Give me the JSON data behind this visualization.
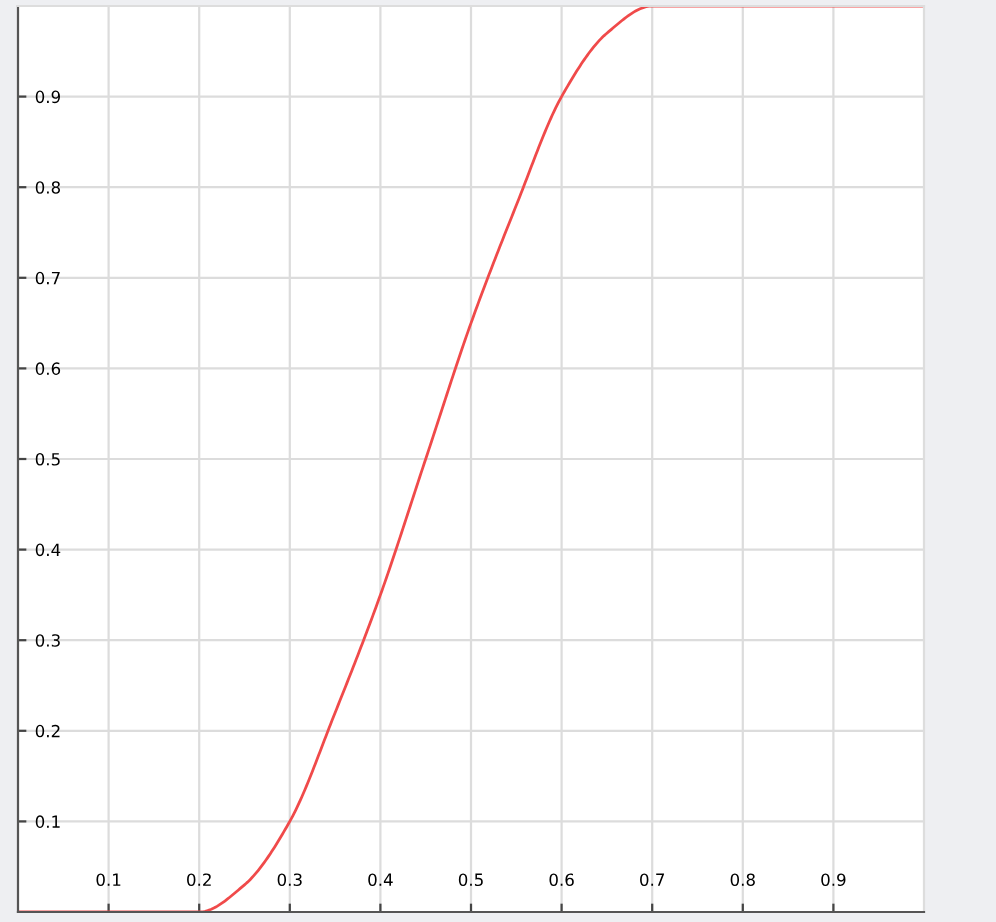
{
  "chart_data": {
    "type": "line",
    "x": [
      0,
      0.2,
      0.25,
      0.3,
      0.35,
      0.4,
      0.45,
      0.5,
      0.55,
      0.6,
      0.65,
      0.7,
      1.0
    ],
    "series": [
      {
        "color": "#f04a4a",
        "values": [
          0,
          0,
          0.03,
          0.1,
          0.22,
          0.35,
          0.5,
          0.65,
          0.78,
          0.9,
          0.97,
          1.0,
          1.0
        ]
      }
    ],
    "xlim": [
      0,
      1
    ],
    "ylim": [
      0,
      1
    ],
    "xticks": [
      0.1,
      0.2,
      0.3,
      0.4,
      0.5,
      0.6,
      0.7,
      0.8,
      0.9
    ],
    "yticks": [
      0.1,
      0.2,
      0.3,
      0.4,
      0.5,
      0.6,
      0.7,
      0.8,
      0.9
    ],
    "grid": true,
    "line_style": "solid",
    "marker": "none"
  }
}
